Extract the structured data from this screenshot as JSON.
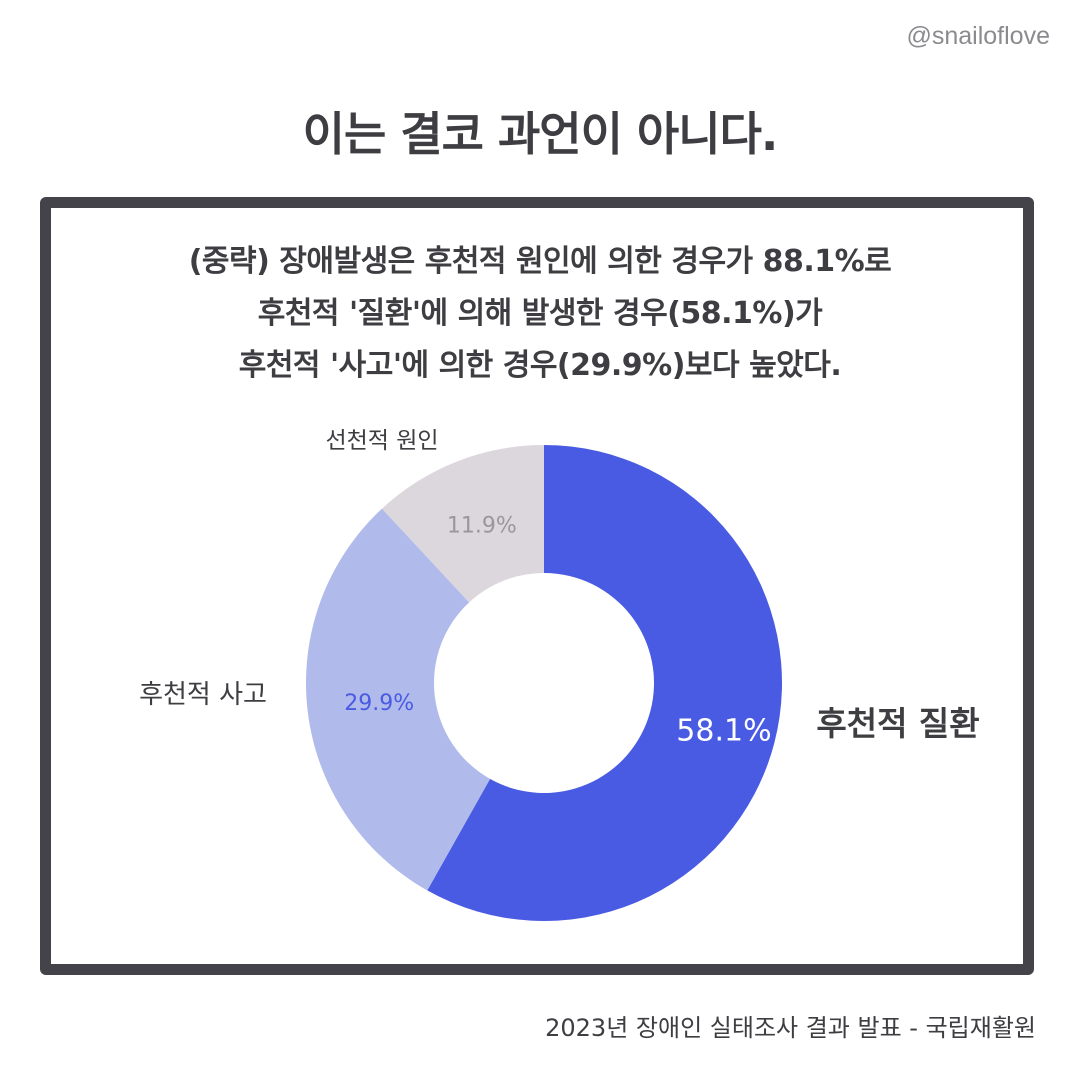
{
  "handle": "@snailoflove",
  "headline": "이는 결코 과언이 아니다.",
  "quote_lines": [
    "(중략) 장애발생은 후천적 원인에 의한 경우가 88.1%로",
    "후천적 '질환'에 의해 발생한 경우(58.1%)가",
    "후천적 '사고'에 의한 경우(29.9%)보다 높았다."
  ],
  "source": "2023년 장애인 실태조사 결과 발표 - 국립재활원",
  "chart_data": {
    "type": "pie",
    "variant": "donut",
    "start": "top",
    "direction": "clockwise",
    "slices": [
      {
        "label": "후천적 질환",
        "value": 58.1,
        "value_label": "58.1%",
        "color": "#4a5be3",
        "value_color": "#ffffff"
      },
      {
        "label": "후천적 사고",
        "value": 29.9,
        "value_label": "29.9%",
        "color": "#b0bbeb",
        "value_color": "#4a5be3"
      },
      {
        "label": "선천적 원인",
        "value": 11.9,
        "value_label": "11.9%",
        "color": "#dcd7dc",
        "value_color": "#9a969a"
      }
    ]
  }
}
